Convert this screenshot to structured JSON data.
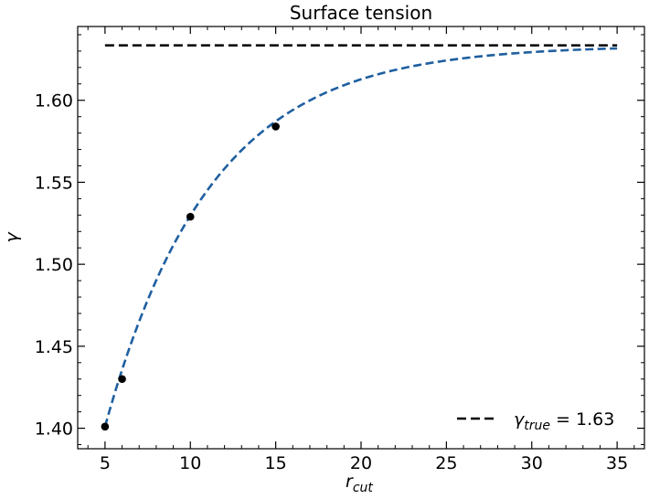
{
  "chart_data": {
    "type": "line",
    "title": "Surface tension",
    "xlabel": "r",
    "xlabel_sub": "cut",
    "ylabel": "γ",
    "xlim": [
      3.4,
      36.6
    ],
    "ylim": [
      1.3875,
      1.645
    ],
    "xticks": [
      5,
      10,
      15,
      20,
      25,
      30,
      35
    ],
    "xtick_labels": [
      "5",
      "10",
      "15",
      "20",
      "25",
      "30",
      "35"
    ],
    "yticks": [
      1.4,
      1.45,
      1.5,
      1.55,
      1.6
    ],
    "ytick_labels": [
      "1.40",
      "1.45",
      "1.50",
      "1.55",
      "1.60"
    ],
    "grid": false,
    "legend_position": "bottom-right",
    "legend": {
      "symbol": "γ",
      "subscript": "true",
      "value_text": " = 1.63"
    },
    "reference_line": {
      "style": "dashed",
      "color": "#000000",
      "y": 1.6335,
      "x_range": [
        5,
        35
      ]
    },
    "fit_curve": {
      "style": "dashed",
      "color": "#1f5fa0",
      "model": "y = A - B*exp(-(x - 5)/tau)",
      "A": 1.6335,
      "B": 0.2325,
      "tau": 6.2,
      "x_range": [
        5,
        35
      ]
    },
    "series": [
      {
        "kind": "scatter",
        "color": "#000000",
        "x": [
          5,
          6,
          10,
          15
        ],
        "y": [
          1.401,
          1.43,
          1.529,
          1.584
        ]
      }
    ]
  }
}
